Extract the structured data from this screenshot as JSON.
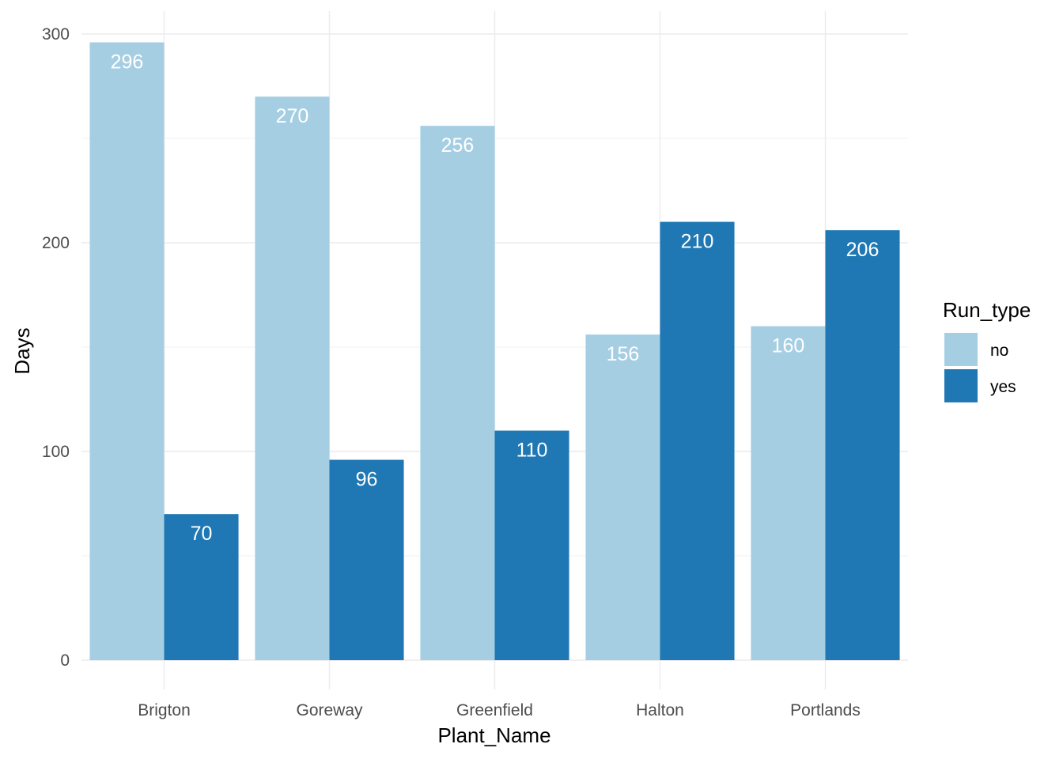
{
  "chart_data": {
    "type": "bar",
    "categories": [
      "Brigton",
      "Goreway",
      "Greenfield",
      "Halton",
      "Portlands"
    ],
    "series": [
      {
        "name": "no",
        "values": [
          296,
          270,
          256,
          156,
          160
        ],
        "color": "#a6cee3"
      },
      {
        "name": "yes",
        "values": [
          70,
          96,
          110,
          210,
          206
        ],
        "color": "#1f78b4"
      }
    ],
    "xlabel": "Plant_Name",
    "ylabel": "Days",
    "ylim": [
      0,
      300
    ],
    "yticks": [
      0,
      100,
      200,
      300
    ],
    "legend": {
      "title": "Run_type",
      "position": "right"
    },
    "grid": true,
    "bar_label_color": "#ffffff"
  }
}
